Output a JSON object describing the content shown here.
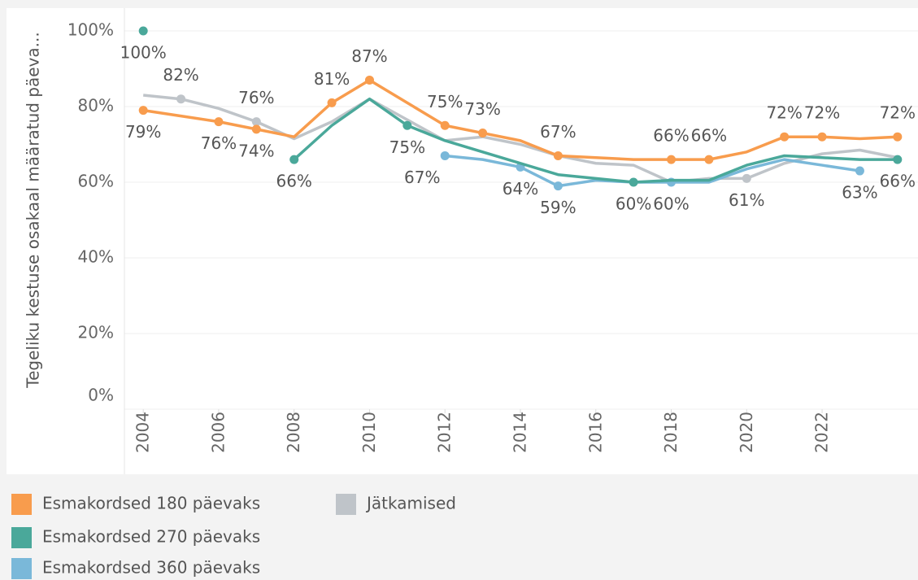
{
  "chart_data": {
    "type": "line",
    "y_axis_label": "Tegeliku kestuse osakaal määratud päeva...",
    "x": [
      2004,
      2005,
      2006,
      2007,
      2008,
      2009,
      2010,
      2011,
      2012,
      2013,
      2014,
      2015,
      2016,
      2017,
      2018,
      2019,
      2020,
      2021,
      2022,
      2023,
      2024
    ],
    "xlim": [
      2003.5,
      2024.5
    ],
    "xticks": [
      2004,
      2006,
      2008,
      2010,
      2012,
      2014,
      2016,
      2018,
      2020,
      2022
    ],
    "ylim": [
      0,
      100
    ],
    "yticks": [
      {
        "value": 0,
        "label": "0%"
      },
      {
        "value": 20,
        "label": "20%"
      },
      {
        "value": 40,
        "label": "40%"
      },
      {
        "value": 60,
        "label": "60%"
      },
      {
        "value": 80,
        "label": "80%"
      },
      {
        "value": 100,
        "label": "100%"
      }
    ],
    "grid": true,
    "legend": "bottom",
    "series": [
      {
        "name": "Jätkamised",
        "color": "#bfc4c9",
        "values": [
          83,
          82,
          79.5,
          76,
          71.5,
          76,
          82,
          76.5,
          71,
          72,
          70,
          67,
          65,
          64.5,
          60,
          61,
          61,
          65,
          67.5,
          68.5,
          66.5
        ],
        "value_labels": [
          null,
          "82%",
          null,
          "76%",
          null,
          null,
          null,
          null,
          null,
          null,
          null,
          null,
          null,
          null,
          null,
          null,
          "61%",
          null,
          null,
          null,
          null
        ]
      },
      {
        "name": "Esmakordsed 360 päevaks",
        "color": "#7ab8d9",
        "values": [
          null,
          null,
          null,
          null,
          null,
          null,
          null,
          null,
          67,
          66,
          64,
          59,
          60.5,
          60,
          60,
          60,
          63.5,
          66,
          64.5,
          63,
          null
        ],
        "value_labels": [
          null,
          null,
          null,
          null,
          null,
          null,
          null,
          null,
          "67%",
          null,
          "64%",
          "59%",
          null,
          null,
          "60%",
          null,
          null,
          null,
          null,
          "63%",
          null
        ]
      },
      {
        "name": "Esmakordsed 270 päevaks",
        "color": "#4aa89a",
        "values": [
          100,
          null,
          null,
          null,
          66,
          75,
          82,
          75,
          71,
          68,
          65,
          62,
          61,
          60,
          60.5,
          60.5,
          64.5,
          67,
          66.5,
          66,
          66
        ],
        "value_labels": [
          "100%",
          null,
          null,
          null,
          "66%",
          null,
          null,
          "75%",
          null,
          null,
          null,
          null,
          null,
          "60%",
          null,
          null,
          null,
          null,
          null,
          null,
          "66%"
        ]
      },
      {
        "name": "Esmakordsed 180 päevaks",
        "color": "#f89c4d",
        "values": [
          79,
          77.5,
          76,
          74,
          72,
          81,
          87,
          81,
          75,
          73,
          71,
          67,
          66.5,
          66,
          66,
          66,
          68,
          72,
          72,
          71.5,
          72
        ],
        "value_labels": [
          "79%",
          null,
          "76%",
          "74%",
          null,
          "81%",
          "87%",
          null,
          "75%",
          "73%",
          null,
          "67%",
          null,
          null,
          "66%",
          "66%",
          null,
          "72%",
          "72%",
          null,
          "72%"
        ]
      }
    ]
  }
}
